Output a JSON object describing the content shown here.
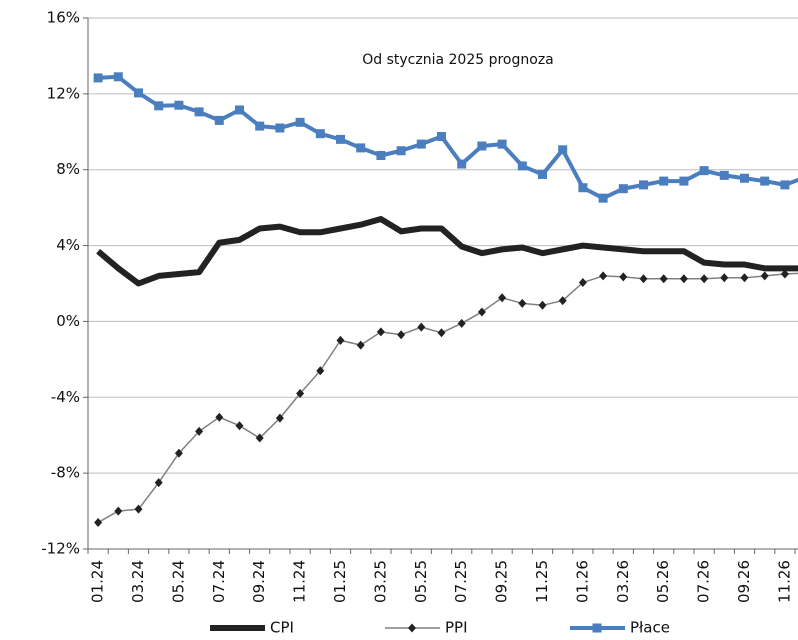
{
  "chart_data": {
    "type": "line",
    "annotation": "Od stycznia 2025 prognoza",
    "categories": [
      "01.24",
      null,
      "03.24",
      null,
      "05.24",
      null,
      "07.24",
      null,
      "09.24",
      null,
      "11.24",
      null,
      "01.25",
      null,
      "03.25",
      null,
      "05.25",
      null,
      "07.25",
      null,
      "09.25",
      null,
      "11.25",
      null,
      "01.26",
      null,
      "03.26",
      null,
      "05.26",
      null,
      "07.26",
      null,
      "09.26",
      null,
      "11.26",
      null
    ],
    "series": [
      {
        "name": "CPI",
        "color": "#222222",
        "marker": "none",
        "width": 6,
        "values": [
          3.7,
          2.8,
          2.0,
          2.4,
          2.5,
          2.6,
          4.15,
          4.3,
          4.9,
          5.0,
          4.7,
          4.7,
          4.9,
          5.1,
          5.4,
          4.75,
          4.9,
          4.9,
          3.95,
          3.6,
          3.8,
          3.9,
          3.6,
          3.8,
          4.0,
          3.9,
          3.8,
          3.7,
          3.7,
          3.7,
          3.1,
          3.0,
          3.0,
          2.8,
          2.8,
          2.8
        ]
      },
      {
        "name": "PPI",
        "color": "#808080",
        "marker_color": "#222222",
        "marker": "diamond",
        "width": 1.5,
        "values": [
          -10.6,
          -10.0,
          -9.9,
          -8.5,
          -6.95,
          -5.8,
          -5.05,
          -5.5,
          -6.15,
          -5.1,
          -3.8,
          -2.6,
          -1.0,
          -1.25,
          -0.55,
          -0.7,
          -0.3,
          -0.6,
          -0.1,
          0.5,
          1.25,
          0.95,
          0.85,
          1.1,
          2.05,
          2.4,
          2.35,
          2.25,
          2.25,
          2.25,
          2.25,
          2.3,
          2.3,
          2.4,
          2.5,
          2.55
        ]
      },
      {
        "name": "Płace",
        "color": "#4a7ebf",
        "marker": "square",
        "width": 4,
        "values": [
          12.84,
          12.9,
          12.05,
          11.37,
          11.4,
          11.05,
          10.6,
          11.15,
          10.3,
          10.2,
          10.5,
          9.9,
          9.6,
          9.15,
          8.75,
          9.0,
          9.35,
          9.75,
          8.3,
          9.25,
          9.35,
          8.2,
          7.75,
          9.05,
          7.05,
          6.5,
          7.0,
          7.2,
          7.4,
          7.4,
          7.95,
          7.7,
          7.55,
          7.4,
          7.2,
          7.6
        ]
      }
    ],
    "ylim": [
      -12,
      16
    ],
    "yticks": [
      {
        "value": -12,
        "label": "-12%"
      },
      {
        "value": -8,
        "label": "-8%"
      },
      {
        "value": -4,
        "label": "-4%"
      },
      {
        "value": 0,
        "label": "0%"
      },
      {
        "value": 4,
        "label": "4%"
      },
      {
        "value": 8,
        "label": "8%"
      },
      {
        "value": 12,
        "label": "12%"
      },
      {
        "value": 16,
        "label": "16%"
      }
    ],
    "grid": true,
    "legend": "bottom"
  }
}
